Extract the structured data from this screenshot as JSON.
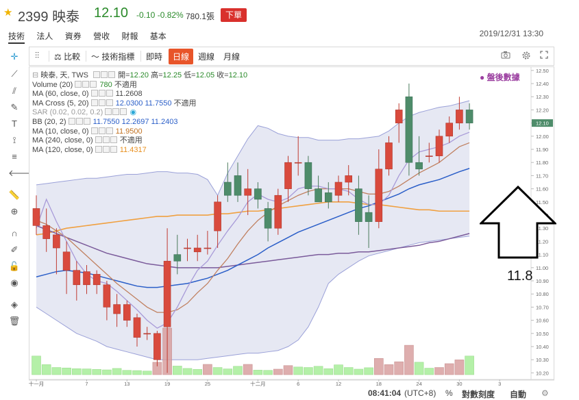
{
  "header": {
    "code": "2399",
    "name": "映泰",
    "price": "12.10",
    "change": "-0.10",
    "change_pct": "-0.82%",
    "volume": "780.1張",
    "order_button": "下單",
    "datetime": "2019/12/31 13:30"
  },
  "tabs": [
    "技術",
    "法人",
    "資券",
    "營收",
    "財報",
    "基本"
  ],
  "toolbar": {
    "compare": "比較",
    "indicators": "技術指標",
    "realtime": "即時",
    "daily": "日線",
    "weekly": "週線",
    "monthly": "月線"
  },
  "legend": {
    "title": "映泰, 天, TWS",
    "open_label": "開=",
    "open": "12.20",
    "high_label": "高=",
    "high": "12.25",
    "low_label": "低=",
    "low": "12.05",
    "close_label": "收=",
    "close": "12.10",
    "vol_label": "Volume (20)",
    "vol_val": "780",
    "vol_na": "不適用",
    "ma60_label": "MA (60, close, 0)",
    "ma60_val": "11.2608",
    "macross_label": "MA Cross (5, 20)",
    "macross_v1": "12.0300",
    "macross_v2": "11.7550",
    "macross_na": "不適用",
    "sar_label": "SAR (0.02, 0.02, 0.2)",
    "bb_label": "BB (20, 2)",
    "bb_v1": "11.7550",
    "bb_v2": "12.2697",
    "bb_v3": "11.2403",
    "ma10_label": "MA (10, close, 0)",
    "ma10_val": "11.9500",
    "ma240_label": "MA (240, close, 0)",
    "ma240_na": "不適用",
    "ma120_label": "MA (120, close, 0)",
    "ma120_val": "11.4317"
  },
  "post_market": "盤後數據",
  "annotation": "11.8",
  "status": {
    "time": "08:41:04",
    "tz": "(UTC+8)",
    "pct": "%",
    "log": "對數刻度",
    "auto": "自動"
  },
  "colors": {
    "up": "#d94a3d",
    "down": "#4e8c6a",
    "band_fill": "#dde0ef",
    "band_line": "#9aa0d8",
    "ma5": "#a89ad8",
    "ma10": "#c08060",
    "ma20": "#2a5ec8",
    "ma60": "#7a5a9a",
    "ma120": "#f0a040",
    "vol_up": "#d9a0a0",
    "vol_down": "#a8ee9a"
  },
  "chart_data": {
    "type": "candlestick",
    "ylim": [
      10.15,
      12.52
    ],
    "y_ticks": [
      "12.50",
      "12.40",
      "12.30",
      "12.20",
      "12.10",
      "12.00",
      "11.90",
      "11.80",
      "11.70",
      "11.60",
      "11.50",
      "11.40",
      "11.30",
      "11.20",
      "11.10",
      "11.00",
      "10.90",
      "10.80",
      "10.70",
      "10.60",
      "10.50",
      "10.40",
      "10.30",
      "10.20"
    ],
    "last_price_tag": "12.10",
    "x_tick_labels": [
      "十一月",
      "7",
      "13",
      "19",
      "25",
      "十二月",
      "6",
      "12",
      "18",
      "24",
      "30",
      "3"
    ],
    "x_tick_index": [
      0,
      5,
      9,
      13,
      17,
      22,
      26,
      30,
      34,
      38,
      42,
      46
    ],
    "candles": [
      {
        "o": 11.32,
        "h": 11.55,
        "l": 11.25,
        "c": 11.45
      },
      {
        "o": 11.22,
        "h": 11.45,
        "l": 11.12,
        "c": 11.32
      },
      {
        "o": 11.15,
        "h": 11.3,
        "l": 10.95,
        "c": 11.25
      },
      {
        "o": 10.98,
        "h": 11.2,
        "l": 10.8,
        "c": 11.12
      },
      {
        "o": 10.87,
        "h": 11.05,
        "l": 10.75,
        "c": 10.98
      },
      {
        "o": 10.87,
        "h": 11.02,
        "l": 10.8,
        "c": 10.97
      },
      {
        "o": 10.87,
        "h": 10.98,
        "l": 10.8,
        "c": 10.95
      },
      {
        "o": 10.7,
        "h": 10.9,
        "l": 10.6,
        "c": 10.87
      },
      {
        "o": 10.65,
        "h": 10.8,
        "l": 10.55,
        "c": 10.72
      },
      {
        "o": 10.6,
        "h": 10.75,
        "l": 10.55,
        "c": 10.72
      },
      {
        "o": 10.47,
        "h": 10.65,
        "l": 10.4,
        "c": 10.62
      },
      {
        "o": 10.5,
        "h": 10.55,
        "l": 10.45,
        "c": 10.5
      },
      {
        "o": 10.3,
        "h": 10.52,
        "l": 10.25,
        "c": 10.5
      },
      {
        "o": 10.55,
        "h": 11.3,
        "l": 10.2,
        "c": 11.05
      },
      {
        "o": 11.1,
        "h": 11.25,
        "l": 10.95,
        "c": 11.05
      },
      {
        "o": 11.15,
        "h": 11.22,
        "l": 11.05,
        "c": 11.15
      },
      {
        "o": 11.12,
        "h": 11.25,
        "l": 11.05,
        "c": 11.15
      },
      {
        "o": 11.15,
        "h": 11.28,
        "l": 11.1,
        "c": 11.15
      },
      {
        "o": 11.28,
        "h": 11.55,
        "l": 11.15,
        "c": 11.5
      },
      {
        "o": 11.65,
        "h": 11.8,
        "l": 11.5,
        "c": 11.55
      },
      {
        "o": 11.7,
        "h": 11.8,
        "l": 11.5,
        "c": 11.55
      },
      {
        "o": 11.55,
        "h": 11.75,
        "l": 11.4,
        "c": 11.6
      },
      {
        "o": 11.6,
        "h": 11.65,
        "l": 11.45,
        "c": 11.52
      },
      {
        "o": 11.45,
        "h": 11.5,
        "l": 11.2,
        "c": 11.3
      },
      {
        "o": 11.3,
        "h": 11.6,
        "l": 11.25,
        "c": 11.55
      },
      {
        "o": 11.6,
        "h": 11.85,
        "l": 11.5,
        "c": 11.8
      },
      {
        "o": 11.8,
        "h": 12.0,
        "l": 11.7,
        "c": 11.8
      },
      {
        "o": 11.8,
        "h": 11.85,
        "l": 11.55,
        "c": 11.6
      },
      {
        "o": 11.6,
        "h": 11.7,
        "l": 11.5,
        "c": 11.5
      },
      {
        "o": 11.57,
        "h": 11.65,
        "l": 11.45,
        "c": 11.5
      },
      {
        "o": 11.55,
        "h": 11.7,
        "l": 11.5,
        "c": 11.65
      },
      {
        "o": 11.65,
        "h": 11.78,
        "l": 11.55,
        "c": 11.7
      },
      {
        "o": 11.6,
        "h": 11.7,
        "l": 11.25,
        "c": 11.35
      },
      {
        "o": 11.42,
        "h": 11.55,
        "l": 11.15,
        "c": 11.35
      },
      {
        "o": 11.35,
        "h": 11.9,
        "l": 11.3,
        "c": 11.75
      },
      {
        "o": 11.75,
        "h": 12.0,
        "l": 11.7,
        "c": 11.95
      },
      {
        "o": 12.1,
        "h": 12.25,
        "l": 11.95,
        "c": 12.2
      },
      {
        "o": 12.3,
        "h": 12.4,
        "l": 11.7,
        "c": 11.8
      },
      {
        "o": 11.8,
        "h": 12.0,
        "l": 11.7,
        "c": 11.75
      },
      {
        "o": 11.85,
        "h": 11.95,
        "l": 11.8,
        "c": 11.85
      },
      {
        "o": 11.85,
        "h": 12.05,
        "l": 11.8,
        "c": 12.0
      },
      {
        "o": 12.0,
        "h": 12.15,
        "l": 11.95,
        "c": 12.1
      },
      {
        "o": 12.1,
        "h": 12.3,
        "l": 12.05,
        "c": 12.2
      },
      {
        "o": 12.2,
        "h": 12.25,
        "l": 12.05,
        "c": 12.1
      }
    ],
    "volumes": [
      780,
      420,
      300,
      280,
      250,
      240,
      220,
      200,
      260,
      180,
      170,
      150,
      520,
      1950,
      360,
      260,
      220,
      430,
      300,
      240,
      350,
      430,
      190,
      180,
      230,
      380,
      320,
      300,
      350,
      250,
      410,
      300,
      230,
      290,
      680,
      420,
      540,
      1230,
      520,
      270,
      300,
      460,
      620,
      780
    ],
    "volume_up": [
      false,
      false,
      false,
      false,
      false,
      false,
      false,
      false,
      false,
      false,
      false,
      false,
      true,
      true,
      false,
      false,
      false,
      true,
      false,
      false,
      false,
      true,
      false,
      false,
      true,
      true,
      false,
      false,
      false,
      false,
      false,
      false,
      false,
      false,
      true,
      true,
      true,
      true,
      false,
      false,
      true,
      true,
      true,
      false
    ],
    "bb_upper": [
      11.63,
      11.64,
      11.65,
      11.66,
      11.67,
      11.68,
      11.68,
      11.69,
      11.7,
      11.71,
      11.71,
      11.72,
      11.73,
      11.73,
      11.72,
      11.72,
      11.71,
      11.67,
      11.55,
      11.72,
      11.85,
      11.98,
      12.08,
      12.06,
      12.02,
      12.0,
      11.99,
      11.99,
      11.97,
      11.97,
      11.97,
      11.98,
      11.98,
      11.99,
      12.0,
      12.04,
      12.1,
      12.15,
      12.18,
      12.2,
      12.22,
      12.23,
      12.25,
      12.27
    ],
    "bb_lower": [
      10.7,
      10.65,
      10.6,
      10.55,
      10.5,
      10.47,
      10.44,
      10.4,
      10.38,
      10.36,
      10.34,
      10.32,
      10.3,
      10.3,
      10.3,
      10.3,
      10.3,
      10.31,
      10.32,
      10.33,
      10.34,
      10.35,
      10.35,
      10.36,
      10.37,
      10.4,
      10.45,
      10.55,
      10.7,
      10.88,
      10.95,
      11.0,
      11.05,
      11.09,
      11.11,
      11.13,
      11.15,
      11.17,
      11.19,
      11.2,
      11.21,
      11.22,
      11.23,
      11.24
    ],
    "ma5": [
      11.3,
      11.52,
      11.35,
      11.2,
      11.05,
      10.95,
      10.9,
      10.88,
      10.82,
      10.75,
      10.68,
      10.6,
      10.54,
      10.58,
      10.7,
      10.85,
      10.98,
      11.05,
      11.17,
      11.28,
      11.38,
      11.5,
      11.56,
      11.52,
      11.5,
      11.53,
      11.6,
      11.62,
      11.62,
      11.6,
      11.6,
      11.58,
      11.52,
      11.48,
      11.48,
      11.55,
      11.7,
      11.82,
      11.88,
      11.9,
      11.92,
      11.95,
      12.0,
      12.03
    ],
    "ma10": [
      11.36,
      11.33,
      11.28,
      11.23,
      11.16,
      11.09,
      11.02,
      10.95,
      10.88,
      10.82,
      10.76,
      10.7,
      10.66,
      10.66,
      10.68,
      10.73,
      10.81,
      10.88,
      10.98,
      11.07,
      11.18,
      11.28,
      11.36,
      11.42,
      11.47,
      11.51,
      11.55,
      11.58,
      11.6,
      11.6,
      11.6,
      11.6,
      11.58,
      11.56,
      11.56,
      11.58,
      11.62,
      11.67,
      11.72,
      11.76,
      11.8,
      11.86,
      11.92,
      11.95
    ],
    "ma20": [
      10.93,
      10.95,
      10.97,
      10.98,
      10.97,
      10.96,
      10.94,
      10.92,
      10.9,
      10.88,
      10.86,
      10.85,
      10.85,
      10.86,
      10.87,
      10.88,
      10.9,
      10.92,
      10.95,
      10.98,
      11.02,
      11.06,
      11.1,
      11.15,
      11.19,
      11.23,
      11.27,
      11.3,
      11.33,
      11.36,
      11.39,
      11.42,
      11.45,
      11.47,
      11.5,
      11.53,
      11.56,
      11.6,
      11.63,
      11.65,
      11.67,
      11.7,
      11.73,
      11.755
    ],
    "ma60": [
      11.32,
      11.29,
      11.26,
      11.23,
      11.2,
      11.17,
      11.14,
      11.11,
      11.09,
      11.07,
      11.05,
      11.03,
      11.02,
      11.01,
      11.0,
      11.0,
      11.0,
      11.0,
      11.0,
      11.01,
      11.02,
      11.03,
      11.04,
      11.05,
      11.06,
      11.07,
      11.08,
      11.09,
      11.1,
      11.1,
      11.11,
      11.11,
      11.12,
      11.12,
      11.13,
      11.14,
      11.15,
      11.16,
      11.17,
      11.19,
      11.2,
      11.22,
      11.24,
      11.26
    ],
    "ma120": [
      11.25,
      11.26,
      11.28,
      11.3,
      11.31,
      11.32,
      11.33,
      11.34,
      11.35,
      11.36,
      11.37,
      11.38,
      11.39,
      11.39,
      11.4,
      11.4,
      11.4,
      11.4,
      11.41,
      11.41,
      11.42,
      11.43,
      11.43,
      11.44,
      11.45,
      11.46,
      11.47,
      11.48,
      11.49,
      11.5,
      11.5,
      11.5,
      11.49,
      11.48,
      11.48,
      11.47,
      11.46,
      11.45,
      11.44,
      11.44,
      11.43,
      11.43,
      11.43,
      11.43
    ]
  }
}
